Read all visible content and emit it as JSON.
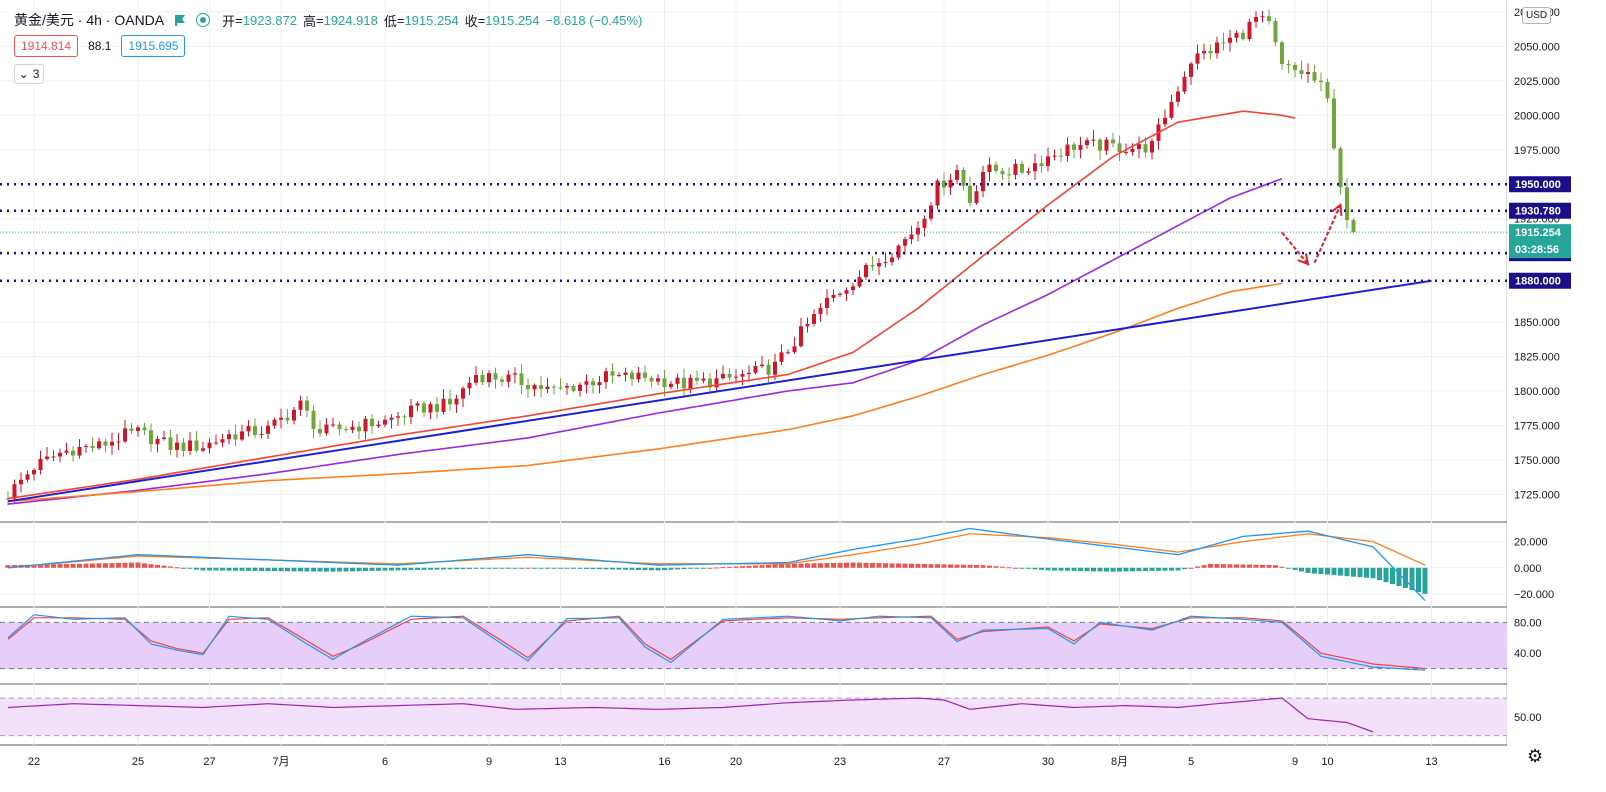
{
  "header": {
    "symbol_title": "黄金/美元 · 4h · OANDA",
    "ohlc": [
      {
        "label": "开",
        "value": "1923.872"
      },
      {
        "label": "高",
        "value": "1924.918"
      },
      {
        "label": "低",
        "value": "1915.254"
      },
      {
        "label": "收",
        "value": "1915.254"
      }
    ],
    "change": "−8.618 (−0.45%)",
    "sell_price": "1914.814",
    "spread": "88.1",
    "buy_price": "1915.695",
    "indicator_count": "3"
  },
  "scale": {
    "currency": "USD",
    "price_ticks": [
      "2075.000",
      "2050.000",
      "2025.000",
      "2000.000",
      "1975.000",
      "1925.000",
      "1850.000",
      "1825.000",
      "1800.000",
      "1775.000",
      "1750.000",
      "1725.000"
    ],
    "price_tick_values": [
      2075,
      2050,
      2025,
      2000,
      1975,
      1925,
      1850,
      1825,
      1800,
      1775,
      1750,
      1725
    ],
    "macd_ticks": [
      "20.000",
      "0.000",
      "−20.000"
    ],
    "macd_tick_values": [
      20,
      0,
      -20
    ],
    "stoch_ticks": [
      "80.00",
      "40.00"
    ],
    "stoch_tick_values": [
      80,
      40
    ],
    "rsi_ticks": [
      "50.00"
    ],
    "rsi_tick_values": [
      50
    ]
  },
  "time_labels": [
    {
      "label": "22",
      "bar": 4
    },
    {
      "label": "25",
      "bar": 20
    },
    {
      "label": "27",
      "bar": 31
    },
    {
      "label": "7月",
      "bar": 42
    },
    {
      "label": "6",
      "bar": 58
    },
    {
      "label": "9",
      "bar": 74
    },
    {
      "label": "13",
      "bar": 85
    },
    {
      "label": "16",
      "bar": 101
    },
    {
      "label": "20",
      "bar": 112
    },
    {
      "label": "23",
      "bar": 128
    },
    {
      "label": "27",
      "bar": 144
    },
    {
      "label": "30",
      "bar": 160
    },
    {
      "label": "8月",
      "bar": 171
    },
    {
      "label": "5",
      "bar": 182
    },
    {
      "label": "9",
      "bar": 198
    },
    {
      "label": "10",
      "bar": 203
    },
    {
      "label": "13",
      "bar": 219
    }
  ],
  "chart_data": [
    {
      "type": "candlestick",
      "symbol": "黄金/美元",
      "timeframe": "4h",
      "broker": "OANDA",
      "ylim": [
        1705,
        2080
      ],
      "price_path": [
        [
          0,
          1725
        ],
        [
          4,
          1745
        ],
        [
          8,
          1755
        ],
        [
          10,
          1758
        ],
        [
          14,
          1760
        ],
        [
          18,
          1768
        ],
        [
          20,
          1770
        ],
        [
          25,
          1760
        ],
        [
          30,
          1760
        ],
        [
          34,
          1768
        ],
        [
          40,
          1772
        ],
        [
          45,
          1790
        ],
        [
          48,
          1770
        ],
        [
          54,
          1775
        ],
        [
          58,
          1778
        ],
        [
          62,
          1785
        ],
        [
          64,
          1788
        ],
        [
          68,
          1790
        ],
        [
          72,
          1812
        ],
        [
          78,
          1808
        ],
        [
          84,
          1800
        ],
        [
          88,
          1805
        ],
        [
          92,
          1810
        ],
        [
          98,
          1810
        ],
        [
          104,
          1805
        ],
        [
          110,
          1808
        ],
        [
          114,
          1812
        ],
        [
          118,
          1818
        ],
        [
          122,
          1842
        ],
        [
          126,
          1865
        ],
        [
          130,
          1880
        ],
        [
          134,
          1895
        ],
        [
          137,
          1905
        ],
        [
          140,
          1920
        ],
        [
          143,
          1948
        ],
        [
          146,
          1960
        ],
        [
          148,
          1938
        ],
        [
          150,
          1960
        ],
        [
          156,
          1960
        ],
        [
          160,
          1970
        ],
        [
          164,
          1978
        ],
        [
          168,
          1978
        ],
        [
          174,
          1976
        ],
        [
          176,
          1978
        ],
        [
          178,
          2000
        ],
        [
          182,
          2040
        ],
        [
          186,
          2050
        ],
        [
          190,
          2060
        ],
        [
          192,
          2070
        ],
        [
          194,
          2065
        ],
        [
          196,
          2035
        ],
        [
          198,
          2032
        ],
        [
          200,
          2030
        ],
        [
          202,
          2020
        ],
        [
          203,
          2010
        ],
        [
          204,
          1980
        ],
        [
          205,
          1950
        ],
        [
          206,
          1920
        ],
        [
          207,
          1915
        ]
      ],
      "last_price": 1915.254,
      "current_price_label": "1915.254",
      "countdown": "03:28:56",
      "horizontal_levels": [
        {
          "value": 1950,
          "label": "1950.000",
          "color": "#1a0f8a"
        },
        {
          "value": 1930.78,
          "label": "1930.780",
          "color": "#1a0f8a"
        },
        {
          "value": 1900,
          "label": "1900.000",
          "color": "#1a0f8a"
        },
        {
          "value": 1880,
          "label": "1880.000",
          "color": "#1a0f8a"
        }
      ],
      "trend_line": {
        "color": "#1e1ed2",
        "from": {
          "bar": 0,
          "price": 1720
        },
        "to": {
          "bar": 219,
          "price": 1880
        }
      },
      "moving_averages": [
        {
          "color": "#f44336",
          "points": [
            [
              0,
              1722
            ],
            [
              20,
              1736
            ],
            [
              40,
              1752
            ],
            [
              60,
              1768
            ],
            [
              80,
              1782
            ],
            [
              100,
              1798
            ],
            [
              120,
              1812
            ],
            [
              130,
              1828
            ],
            [
              140,
              1860
            ],
            [
              150,
              1898
            ],
            [
              160,
              1935
            ],
            [
              170,
              1970
            ],
            [
              180,
              1995
            ],
            [
              190,
              2003
            ],
            [
              196,
              2000
            ],
            [
              198,
              1998
            ]
          ]
        },
        {
          "color": "#9c27e0",
          "points": [
            [
              0,
              1718
            ],
            [
              20,
              1728
            ],
            [
              40,
              1740
            ],
            [
              60,
              1754
            ],
            [
              80,
              1766
            ],
            [
              100,
              1784
            ],
            [
              120,
              1800
            ],
            [
              130,
              1806
            ],
            [
              140,
              1822
            ],
            [
              150,
              1848
            ],
            [
              160,
              1870
            ],
            [
              170,
              1895
            ],
            [
              180,
              1920
            ],
            [
              188,
              1940
            ],
            [
              196,
              1954
            ]
          ]
        },
        {
          "color": "#ff7f1c",
          "points": [
            [
              0,
              1720
            ],
            [
              20,
              1727
            ],
            [
              40,
              1735
            ],
            [
              60,
              1740
            ],
            [
              80,
              1746
            ],
            [
              100,
              1758
            ],
            [
              120,
              1772
            ],
            [
              130,
              1782
            ],
            [
              140,
              1796
            ],
            [
              150,
              1812
            ],
            [
              160,
              1826
            ],
            [
              170,
              1842
            ],
            [
              180,
              1860
            ],
            [
              188,
              1872
            ],
            [
              196,
              1878
            ]
          ]
        }
      ],
      "forecast_arrows": [
        {
          "color": "#e0222a",
          "from": {
            "bar": 196,
            "price": 1915
          },
          "to": {
            "bar": 200,
            "price": 1892
          }
        },
        {
          "color": "#e0222a",
          "from": {
            "bar": 201,
            "price": 1893
          },
          "to": {
            "bar": 205,
            "price": 1935
          }
        }
      ]
    },
    {
      "type": "macd",
      "ylim": [
        -30,
        35
      ],
      "macd_path": [
        [
          0,
          0
        ],
        [
          20,
          10
        ],
        [
          40,
          6
        ],
        [
          60,
          2
        ],
        [
          80,
          10
        ],
        [
          100,
          2
        ],
        [
          120,
          4
        ],
        [
          130,
          14
        ],
        [
          140,
          22
        ],
        [
          148,
          30
        ],
        [
          160,
          22
        ],
        [
          170,
          16
        ],
        [
          180,
          10
        ],
        [
          190,
          24
        ],
        [
          200,
          28
        ],
        [
          210,
          16
        ],
        [
          218,
          -25
        ]
      ],
      "signal_path": [
        [
          0,
          0
        ],
        [
          20,
          9
        ],
        [
          40,
          6
        ],
        [
          60,
          3
        ],
        [
          80,
          8
        ],
        [
          100,
          3
        ],
        [
          120,
          3
        ],
        [
          130,
          10
        ],
        [
          140,
          18
        ],
        [
          148,
          26
        ],
        [
          160,
          23
        ],
        [
          170,
          18
        ],
        [
          180,
          12
        ],
        [
          190,
          20
        ],
        [
          200,
          26
        ],
        [
          210,
          20
        ],
        [
          218,
          2
        ]
      ],
      "histogram_path": [
        [
          0,
          2
        ],
        [
          20,
          4
        ],
        [
          30,
          -2
        ],
        [
          50,
          -3
        ],
        [
          60,
          -2
        ],
        [
          70,
          -1
        ],
        [
          80,
          0
        ],
        [
          100,
          -2
        ],
        [
          120,
          3
        ],
        [
          130,
          4
        ],
        [
          140,
          3
        ],
        [
          150,
          2
        ],
        [
          160,
          -2
        ],
        [
          170,
          -3
        ],
        [
          180,
          -2
        ],
        [
          185,
          3
        ],
        [
          195,
          2
        ],
        [
          200,
          -4
        ],
        [
          210,
          -8
        ],
        [
          218,
          -20
        ]
      ],
      "hist_positive_color": "#ef5350",
      "hist_negative_color": "#26a69a"
    },
    {
      "type": "stochastic",
      "ylim": [
        0,
        100
      ],
      "band": [
        20,
        80
      ],
      "k_path": [
        [
          0,
          60
        ],
        [
          4,
          90
        ],
        [
          10,
          84
        ],
        [
          18,
          86
        ],
        [
          22,
          52
        ],
        [
          26,
          44
        ],
        [
          30,
          38
        ],
        [
          34,
          88
        ],
        [
          40,
          84
        ],
        [
          46,
          52
        ],
        [
          50,
          32
        ],
        [
          54,
          52
        ],
        [
          62,
          88
        ],
        [
          70,
          86
        ],
        [
          76,
          52
        ],
        [
          80,
          30
        ],
        [
          86,
          85
        ],
        [
          94,
          86
        ],
        [
          98,
          48
        ],
        [
          102,
          28
        ],
        [
          110,
          84
        ],
        [
          120,
          88
        ],
        [
          128,
          82
        ],
        [
          134,
          88
        ],
        [
          142,
          86
        ],
        [
          146,
          55
        ],
        [
          150,
          70
        ],
        [
          160,
          72
        ],
        [
          164,
          52
        ],
        [
          168,
          80
        ],
        [
          176,
          70
        ],
        [
          182,
          88
        ],
        [
          190,
          84
        ],
        [
          196,
          80
        ],
        [
          202,
          36
        ],
        [
          210,
          22
        ],
        [
          218,
          18
        ]
      ],
      "d_path": [
        [
          0,
          58
        ],
        [
          4,
          86
        ],
        [
          10,
          86
        ],
        [
          18,
          84
        ],
        [
          22,
          56
        ],
        [
          26,
          46
        ],
        [
          30,
          40
        ],
        [
          34,
          84
        ],
        [
          40,
          86
        ],
        [
          46,
          56
        ],
        [
          50,
          36
        ],
        [
          54,
          50
        ],
        [
          62,
          84
        ],
        [
          70,
          88
        ],
        [
          76,
          56
        ],
        [
          80,
          34
        ],
        [
          86,
          82
        ],
        [
          94,
          88
        ],
        [
          98,
          52
        ],
        [
          102,
          32
        ],
        [
          110,
          82
        ],
        [
          120,
          86
        ],
        [
          128,
          84
        ],
        [
          134,
          86
        ],
        [
          142,
          88
        ],
        [
          146,
          58
        ],
        [
          150,
          68
        ],
        [
          160,
          74
        ],
        [
          164,
          56
        ],
        [
          168,
          78
        ],
        [
          176,
          72
        ],
        [
          182,
          86
        ],
        [
          190,
          86
        ],
        [
          196,
          82
        ],
        [
          202,
          40
        ],
        [
          210,
          26
        ],
        [
          218,
          20
        ]
      ],
      "k_color": "#2196f3",
      "d_color": "#f44336"
    },
    {
      "type": "rsi",
      "ylim": [
        20,
        85
      ],
      "band": [
        30,
        70
      ],
      "line_color": "#9c27b0",
      "rsi_path": [
        [
          0,
          60
        ],
        [
          10,
          64
        ],
        [
          20,
          62
        ],
        [
          30,
          60
        ],
        [
          40,
          64
        ],
        [
          50,
          60
        ],
        [
          60,
          62
        ],
        [
          70,
          64
        ],
        [
          78,
          58
        ],
        [
          90,
          60
        ],
        [
          100,
          58
        ],
        [
          110,
          60
        ],
        [
          120,
          65
        ],
        [
          130,
          68
        ],
        [
          140,
          70
        ],
        [
          144,
          68
        ],
        [
          148,
          58
        ],
        [
          156,
          64
        ],
        [
          164,
          60
        ],
        [
          172,
          62
        ],
        [
          180,
          60
        ],
        [
          186,
          64
        ],
        [
          196,
          70
        ],
        [
          200,
          48
        ],
        [
          206,
          44
        ],
        [
          210,
          34
        ]
      ]
    }
  ]
}
